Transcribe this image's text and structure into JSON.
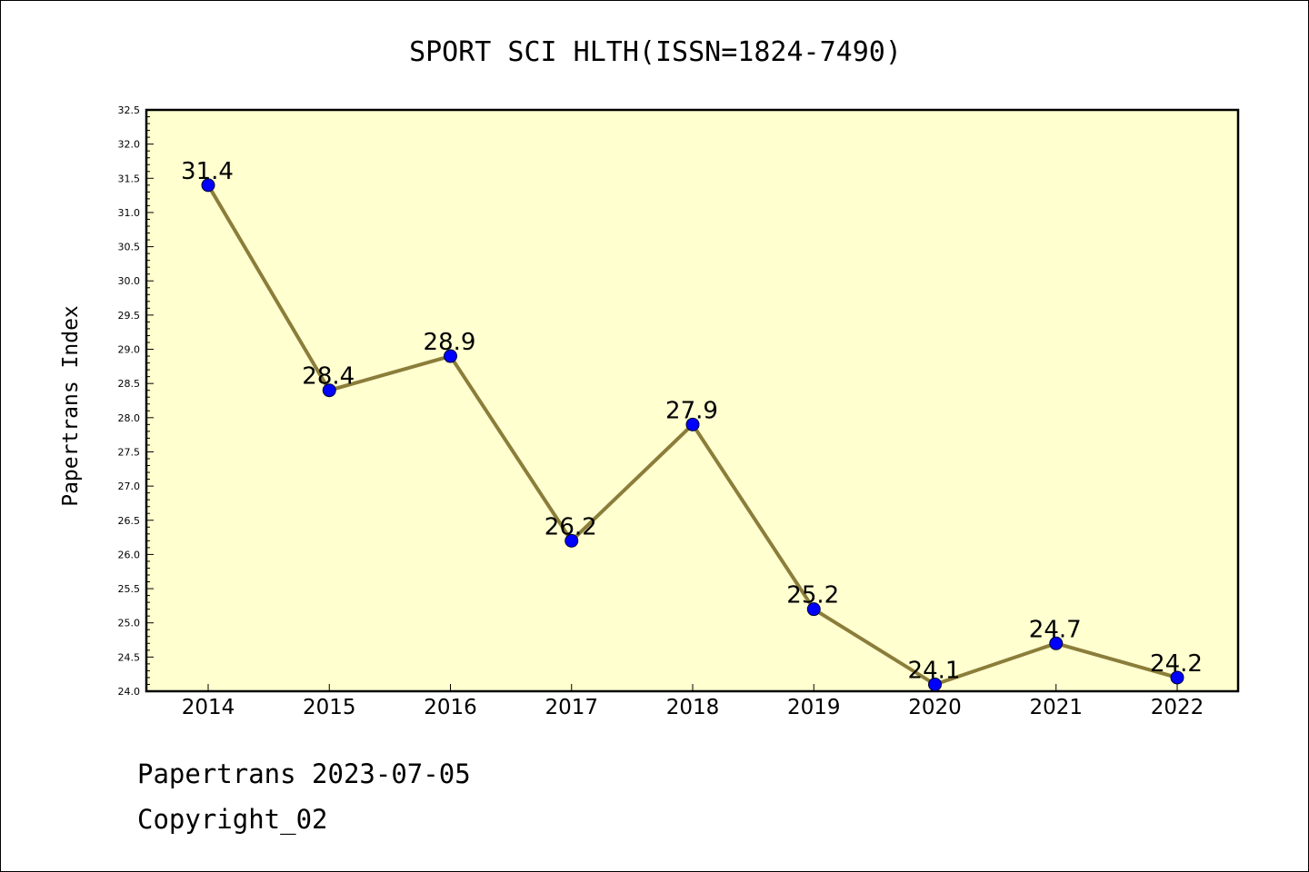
{
  "chart_data": {
    "type": "line",
    "title": "SPORT SCI HLTH(ISSN=1824-7490)",
    "ylabel": "Papertrans Index",
    "xlabel": "",
    "categories": [
      "2014",
      "2015",
      "2016",
      "2017",
      "2018",
      "2019",
      "2020",
      "2021",
      "2022"
    ],
    "values": [
      31.4,
      28.4,
      28.9,
      26.2,
      27.9,
      25.2,
      24.1,
      24.7,
      24.2
    ],
    "data_labels": [
      "31.4",
      "28.4",
      "28.9",
      "26.2",
      "27.9",
      "25.2",
      "24.1",
      "24.7",
      "24.2"
    ],
    "ylim": [
      24.0,
      32.5
    ],
    "yticks": [
      "24.0",
      "24.5",
      "25.0",
      "25.5",
      "26.0",
      "26.5",
      "27.0",
      "27.5",
      "28.0",
      "28.5",
      "29.0",
      "29.5",
      "30.0",
      "30.5",
      "31.0",
      "31.5",
      "32.0",
      "32.5"
    ],
    "grid": false,
    "legend": "none",
    "colors": {
      "line": "#8B7D3A",
      "marker": "#0000FF",
      "plot_background": "#FFFFD0"
    }
  },
  "footer": {
    "line1": "Papertrans 2023-07-05",
    "line2": "Copyright_02"
  }
}
